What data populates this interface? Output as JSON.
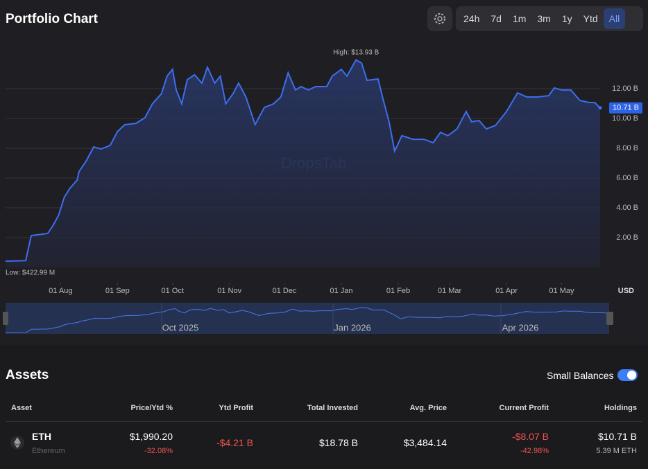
{
  "header": {
    "title": "Portfolio Chart",
    "ranges": [
      "24h",
      "7d",
      "1m",
      "3m",
      "1y",
      "Ytd",
      "All"
    ],
    "active_range": 6
  },
  "chart_data": {
    "type": "line",
    "color": "#3d6ef0",
    "x": [
      0,
      11,
      14,
      18,
      23,
      26,
      29,
      32,
      35,
      39,
      40,
      44,
      48,
      52,
      57,
      61,
      65,
      71,
      76,
      80,
      85,
      88,
      91,
      93,
      96,
      99,
      103,
      107,
      110,
      114,
      117,
      120,
      124,
      127,
      131,
      136,
      141,
      146,
      150,
      154,
      158,
      161,
      165,
      169,
      175,
      178,
      183,
      186,
      191,
      194,
      197,
      203,
      206,
      209,
      212,
      216,
      222,
      228,
      233,
      237,
      241,
      246,
      251,
      254,
      258,
      262,
      267,
      273,
      279,
      284,
      290,
      296,
      299,
      303,
      308,
      313,
      318,
      321,
      324
    ],
    "values": [
      0.42,
      0.45,
      2.14,
      2.2,
      2.28,
      2.84,
      3.53,
      4.7,
      5.3,
      5.86,
      6.42,
      7.16,
      8.09,
      7.95,
      8.19,
      9.12,
      9.58,
      9.67,
      10.05,
      10.98,
      11.67,
      12.84,
      13.3,
      11.91,
      10.98,
      12.6,
      12.93,
      12.37,
      13.44,
      12.37,
      12.84,
      10.98,
      11.67,
      12.37,
      11.44,
      9.58,
      10.74,
      10.98,
      11.44,
      13.07,
      11.91,
      12.14,
      11.91,
      12.14,
      12.14,
      12.84,
      13.3,
      12.84,
      13.93,
      13.72,
      12.56,
      12.65,
      11.16,
      9.77,
      7.81,
      8.84,
      8.6,
      8.6,
      8.37,
      9.07,
      8.84,
      9.3,
      10.47,
      9.77,
      9.86,
      9.3,
      9.53,
      10.47,
      11.72,
      11.44,
      11.44,
      11.53,
      12.05,
      11.91,
      11.91,
      11.21,
      11.07,
      11.07,
      10.71
    ],
    "xlim": [
      0,
      324
    ],
    "xticks": [
      {
        "value": 30,
        "label": "01 Aug"
      },
      {
        "value": 61,
        "label": "01 Sep"
      },
      {
        "value": 91,
        "label": "01 Oct"
      },
      {
        "value": 122,
        "label": "01 Nov"
      },
      {
        "value": 152,
        "label": "01 Dec"
      },
      {
        "value": 183,
        "label": "01 Jan"
      },
      {
        "value": 214,
        "label": "01 Feb"
      },
      {
        "value": 242,
        "label": "01 Mar"
      },
      {
        "value": 273,
        "label": "01 Apr"
      },
      {
        "value": 303,
        "label": "01 May"
      }
    ],
    "ylim": [
      0,
      15
    ],
    "yticks": [
      {
        "value": 2,
        "label": "2.00 B"
      },
      {
        "value": 4,
        "label": "4.00 B"
      },
      {
        "value": 6,
        "label": "6.00 B"
      },
      {
        "value": 8,
        "label": "8.00 B"
      },
      {
        "value": 10,
        "label": "10.00 B"
      },
      {
        "value": 12,
        "label": "12.00 B"
      }
    ],
    "grid": true,
    "unit": "USD",
    "high_label": "High: $13.93 B",
    "low_label": "Low: $422.99 M",
    "last_label": {
      "value": 10.71,
      "label": "10.71 B"
    },
    "watermark": "DropsTab"
  },
  "navigator": {
    "labels": [
      "Oct 2025",
      "Jan 2026",
      "Apr 2026"
    ]
  },
  "assets": {
    "title": "Assets",
    "toggle_label": "Small Balances",
    "toggle_on": true,
    "columns": [
      "Asset",
      "Price/Ytd %",
      "Ytd Profit",
      "Total Invested",
      "Avg. Price",
      "Current Profit",
      "Holdings"
    ],
    "rows": [
      {
        "symbol": "ETH",
        "name": "Ethereum",
        "price": "$1,990.20",
        "ytd_pct": "-32.08%",
        "ytd_profit": "-$4.21 B",
        "invested": "$18.78 B",
        "avg_price": "$3,484.14",
        "current_profit": "-$8.07 B",
        "current_pct": "-42.98%",
        "holdings": "$10.71 B",
        "amount": "5.39 M ETH"
      }
    ]
  }
}
